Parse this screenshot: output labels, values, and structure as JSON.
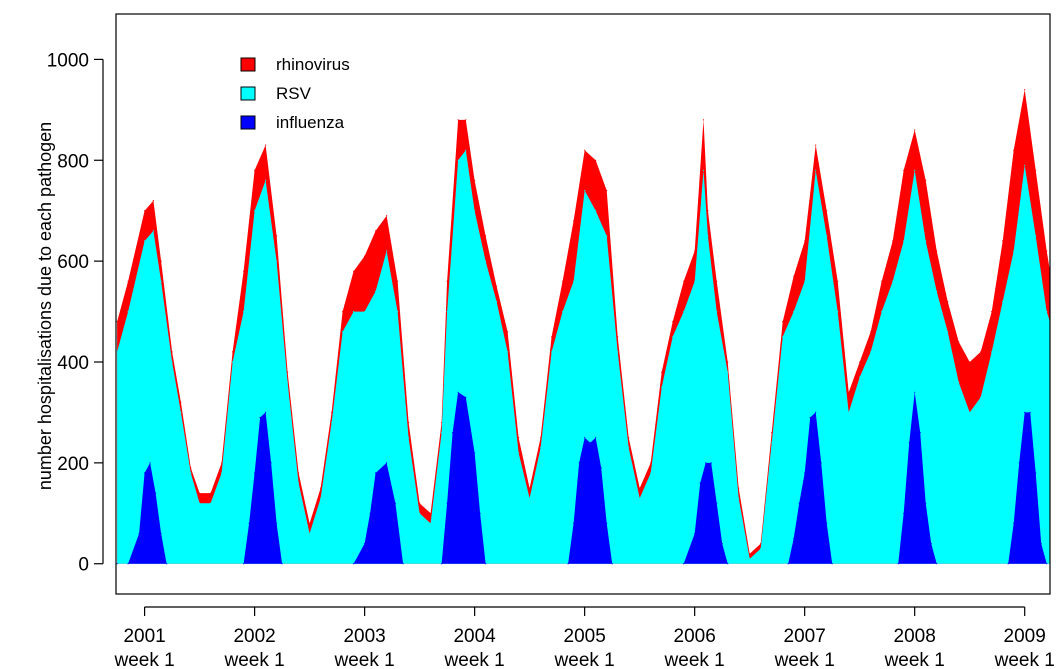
{
  "chart_data": {
    "type": "area",
    "stacked": true,
    "title": "",
    "xlabel": "",
    "ylabel": "number hospitalisations due to each pathogen",
    "ylim": [
      -60,
      1090
    ],
    "yticks": [
      0,
      200,
      400,
      600,
      800,
      1000
    ],
    "xlim": [
      2000.74,
      2009.23
    ],
    "xticks": [
      {
        "value": 2001,
        "line1": "2001",
        "line2": "week 1"
      },
      {
        "value": 2002,
        "line1": "2002",
        "line2": "week 1"
      },
      {
        "value": 2003,
        "line1": "2003",
        "line2": "week 1"
      },
      {
        "value": 2004,
        "line1": "2004",
        "line2": "week 1"
      },
      {
        "value": 2005,
        "line1": "2005",
        "line2": "week 1"
      },
      {
        "value": 2006,
        "line1": "2006",
        "line2": "week 1"
      },
      {
        "value": 2007,
        "line1": "2007",
        "line2": "week 1"
      },
      {
        "value": 2008,
        "line1": "2008",
        "line2": "week 1"
      },
      {
        "value": 2009,
        "line1": "2009",
        "line2": "week 1"
      }
    ],
    "grid": false,
    "legend_position": "top-left",
    "series": [
      {
        "name": "rhinovirus",
        "color": "#ff0000",
        "points": [
          [
            2000.75,
            480
          ],
          [
            2000.85,
            560
          ],
          [
            2001.0,
            700
          ],
          [
            2001.08,
            720
          ],
          [
            2001.15,
            600
          ],
          [
            2001.25,
            420
          ],
          [
            2001.33,
            320
          ],
          [
            2001.42,
            190
          ],
          [
            2001.5,
            140
          ],
          [
            2001.6,
            140
          ],
          [
            2001.7,
            200
          ],
          [
            2001.8,
            420
          ],
          [
            2001.9,
            580
          ],
          [
            2002.0,
            780
          ],
          [
            2002.1,
            830
          ],
          [
            2002.2,
            650
          ],
          [
            2002.3,
            380
          ],
          [
            2002.4,
            180
          ],
          [
            2002.5,
            80
          ],
          [
            2002.6,
            150
          ],
          [
            2002.7,
            300
          ],
          [
            2002.8,
            500
          ],
          [
            2002.9,
            580
          ],
          [
            2003.0,
            610
          ],
          [
            2003.1,
            660
          ],
          [
            2003.2,
            690
          ],
          [
            2003.3,
            560
          ],
          [
            2003.4,
            280
          ],
          [
            2003.5,
            120
          ],
          [
            2003.6,
            100
          ],
          [
            2003.7,
            280
          ],
          [
            2003.75,
            560
          ],
          [
            2003.85,
            880
          ],
          [
            2003.92,
            880
          ],
          [
            2004.0,
            760
          ],
          [
            2004.1,
            650
          ],
          [
            2004.2,
            550
          ],
          [
            2004.3,
            460
          ],
          [
            2004.4,
            250
          ],
          [
            2004.5,
            150
          ],
          [
            2004.6,
            250
          ],
          [
            2004.7,
            450
          ],
          [
            2004.8,
            560
          ],
          [
            2004.9,
            680
          ],
          [
            2005.0,
            820
          ],
          [
            2005.1,
            800
          ],
          [
            2005.2,
            740
          ],
          [
            2005.3,
            450
          ],
          [
            2005.4,
            250
          ],
          [
            2005.5,
            150
          ],
          [
            2005.6,
            200
          ],
          [
            2005.7,
            380
          ],
          [
            2005.8,
            480
          ],
          [
            2005.9,
            560
          ],
          [
            2006.0,
            620
          ],
          [
            2006.08,
            880
          ],
          [
            2006.12,
            700
          ],
          [
            2006.2,
            560
          ],
          [
            2006.3,
            400
          ],
          [
            2006.4,
            150
          ],
          [
            2006.5,
            20
          ],
          [
            2006.6,
            40
          ],
          [
            2006.7,
            260
          ],
          [
            2006.8,
            480
          ],
          [
            2006.9,
            570
          ],
          [
            2007.0,
            640
          ],
          [
            2007.1,
            830
          ],
          [
            2007.2,
            700
          ],
          [
            2007.3,
            560
          ],
          [
            2007.4,
            340
          ],
          [
            2007.5,
            400
          ],
          [
            2007.6,
            460
          ],
          [
            2007.7,
            560
          ],
          [
            2007.8,
            640
          ],
          [
            2007.9,
            780
          ],
          [
            2008.0,
            860
          ],
          [
            2008.1,
            760
          ],
          [
            2008.2,
            620
          ],
          [
            2008.3,
            520
          ],
          [
            2008.4,
            440
          ],
          [
            2008.5,
            400
          ],
          [
            2008.6,
            420
          ],
          [
            2008.7,
            500
          ],
          [
            2008.8,
            640
          ],
          [
            2008.9,
            820
          ],
          [
            2009.0,
            940
          ],
          [
            2009.1,
            780
          ],
          [
            2009.2,
            620
          ],
          [
            2009.23,
            580
          ]
        ]
      },
      {
        "name": "RSV",
        "color": "#00ffff",
        "points": [
          [
            2000.75,
            420
          ],
          [
            2000.85,
            500
          ],
          [
            2001.0,
            640
          ],
          [
            2001.08,
            660
          ],
          [
            2001.15,
            560
          ],
          [
            2001.25,
            400
          ],
          [
            2001.33,
            300
          ],
          [
            2001.42,
            180
          ],
          [
            2001.5,
            120
          ],
          [
            2001.6,
            120
          ],
          [
            2001.7,
            180
          ],
          [
            2001.8,
            400
          ],
          [
            2001.9,
            500
          ],
          [
            2002.0,
            700
          ],
          [
            2002.1,
            760
          ],
          [
            2002.2,
            600
          ],
          [
            2002.3,
            360
          ],
          [
            2002.4,
            160
          ],
          [
            2002.5,
            60
          ],
          [
            2002.6,
            130
          ],
          [
            2002.7,
            280
          ],
          [
            2002.8,
            460
          ],
          [
            2002.9,
            500
          ],
          [
            2003.0,
            500
          ],
          [
            2003.1,
            540
          ],
          [
            2003.2,
            620
          ],
          [
            2003.3,
            500
          ],
          [
            2003.4,
            250
          ],
          [
            2003.5,
            100
          ],
          [
            2003.6,
            80
          ],
          [
            2003.7,
            260
          ],
          [
            2003.75,
            500
          ],
          [
            2003.85,
            800
          ],
          [
            2003.92,
            820
          ],
          [
            2004.0,
            700
          ],
          [
            2004.1,
            600
          ],
          [
            2004.2,
            520
          ],
          [
            2004.3,
            420
          ],
          [
            2004.4,
            220
          ],
          [
            2004.5,
            130
          ],
          [
            2004.6,
            230
          ],
          [
            2004.7,
            420
          ],
          [
            2004.8,
            500
          ],
          [
            2004.9,
            560
          ],
          [
            2005.0,
            740
          ],
          [
            2005.1,
            700
          ],
          [
            2005.2,
            650
          ],
          [
            2005.3,
            420
          ],
          [
            2005.4,
            230
          ],
          [
            2005.5,
            130
          ],
          [
            2005.6,
            180
          ],
          [
            2005.7,
            350
          ],
          [
            2005.8,
            450
          ],
          [
            2005.9,
            500
          ],
          [
            2006.0,
            560
          ],
          [
            2006.08,
            780
          ],
          [
            2006.12,
            650
          ],
          [
            2006.2,
            500
          ],
          [
            2006.3,
            380
          ],
          [
            2006.4,
            130
          ],
          [
            2006.5,
            10
          ],
          [
            2006.6,
            30
          ],
          [
            2006.7,
            240
          ],
          [
            2006.8,
            450
          ],
          [
            2006.9,
            500
          ],
          [
            2007.0,
            560
          ],
          [
            2007.1,
            780
          ],
          [
            2007.2,
            650
          ],
          [
            2007.3,
            500
          ],
          [
            2007.4,
            300
          ],
          [
            2007.5,
            370
          ],
          [
            2007.6,
            420
          ],
          [
            2007.7,
            500
          ],
          [
            2007.8,
            560
          ],
          [
            2007.9,
            640
          ],
          [
            2008.0,
            780
          ],
          [
            2008.1,
            640
          ],
          [
            2008.2,
            540
          ],
          [
            2008.3,
            460
          ],
          [
            2008.4,
            360
          ],
          [
            2008.5,
            300
          ],
          [
            2008.6,
            330
          ],
          [
            2008.7,
            420
          ],
          [
            2008.8,
            520
          ],
          [
            2008.9,
            620
          ],
          [
            2009.0,
            790
          ],
          [
            2009.1,
            650
          ],
          [
            2009.2,
            500
          ],
          [
            2009.23,
            480
          ]
        ]
      },
      {
        "name": "influenza",
        "color": "#0000ff",
        "points": [
          [
            2000.75,
            0
          ],
          [
            2000.85,
            0
          ],
          [
            2000.95,
            60
          ],
          [
            2001.0,
            180
          ],
          [
            2001.05,
            200
          ],
          [
            2001.1,
            140
          ],
          [
            2001.15,
            60
          ],
          [
            2001.2,
            0
          ],
          [
            2001.9,
            0
          ],
          [
            2001.95,
            80
          ],
          [
            2002.0,
            180
          ],
          [
            2002.05,
            290
          ],
          [
            2002.1,
            300
          ],
          [
            2002.15,
            200
          ],
          [
            2002.2,
            80
          ],
          [
            2002.25,
            0
          ],
          [
            2002.9,
            0
          ],
          [
            2003.0,
            40
          ],
          [
            2003.05,
            100
          ],
          [
            2003.1,
            180
          ],
          [
            2003.2,
            200
          ],
          [
            2003.28,
            120
          ],
          [
            2003.35,
            0
          ],
          [
            2003.7,
            0
          ],
          [
            2003.75,
            120
          ],
          [
            2003.8,
            260
          ],
          [
            2003.85,
            340
          ],
          [
            2003.92,
            330
          ],
          [
            2004.0,
            220
          ],
          [
            2004.05,
            100
          ],
          [
            2004.1,
            0
          ],
          [
            2004.85,
            0
          ],
          [
            2004.9,
            80
          ],
          [
            2004.95,
            200
          ],
          [
            2005.0,
            250
          ],
          [
            2005.05,
            240
          ],
          [
            2005.1,
            250
          ],
          [
            2005.15,
            190
          ],
          [
            2005.2,
            80
          ],
          [
            2005.25,
            0
          ],
          [
            2005.9,
            0
          ],
          [
            2006.0,
            60
          ],
          [
            2006.05,
            160
          ],
          [
            2006.1,
            200
          ],
          [
            2006.15,
            200
          ],
          [
            2006.2,
            120
          ],
          [
            2006.25,
            40
          ],
          [
            2006.3,
            0
          ],
          [
            2006.85,
            0
          ],
          [
            2006.9,
            50
          ],
          [
            2006.95,
            120
          ],
          [
            2007.0,
            180
          ],
          [
            2007.05,
            290
          ],
          [
            2007.1,
            300
          ],
          [
            2007.15,
            200
          ],
          [
            2007.2,
            80
          ],
          [
            2007.25,
            0
          ],
          [
            2007.85,
            0
          ],
          [
            2007.9,
            100
          ],
          [
            2007.95,
            240
          ],
          [
            2008.0,
            340
          ],
          [
            2008.05,
            260
          ],
          [
            2008.1,
            120
          ],
          [
            2008.15,
            40
          ],
          [
            2008.2,
            0
          ],
          [
            2008.85,
            0
          ],
          [
            2008.9,
            80
          ],
          [
            2008.95,
            200
          ],
          [
            2009.0,
            300
          ],
          [
            2009.05,
            300
          ],
          [
            2009.1,
            180
          ],
          [
            2009.15,
            40
          ],
          [
            2009.2,
            0
          ]
        ]
      }
    ]
  }
}
